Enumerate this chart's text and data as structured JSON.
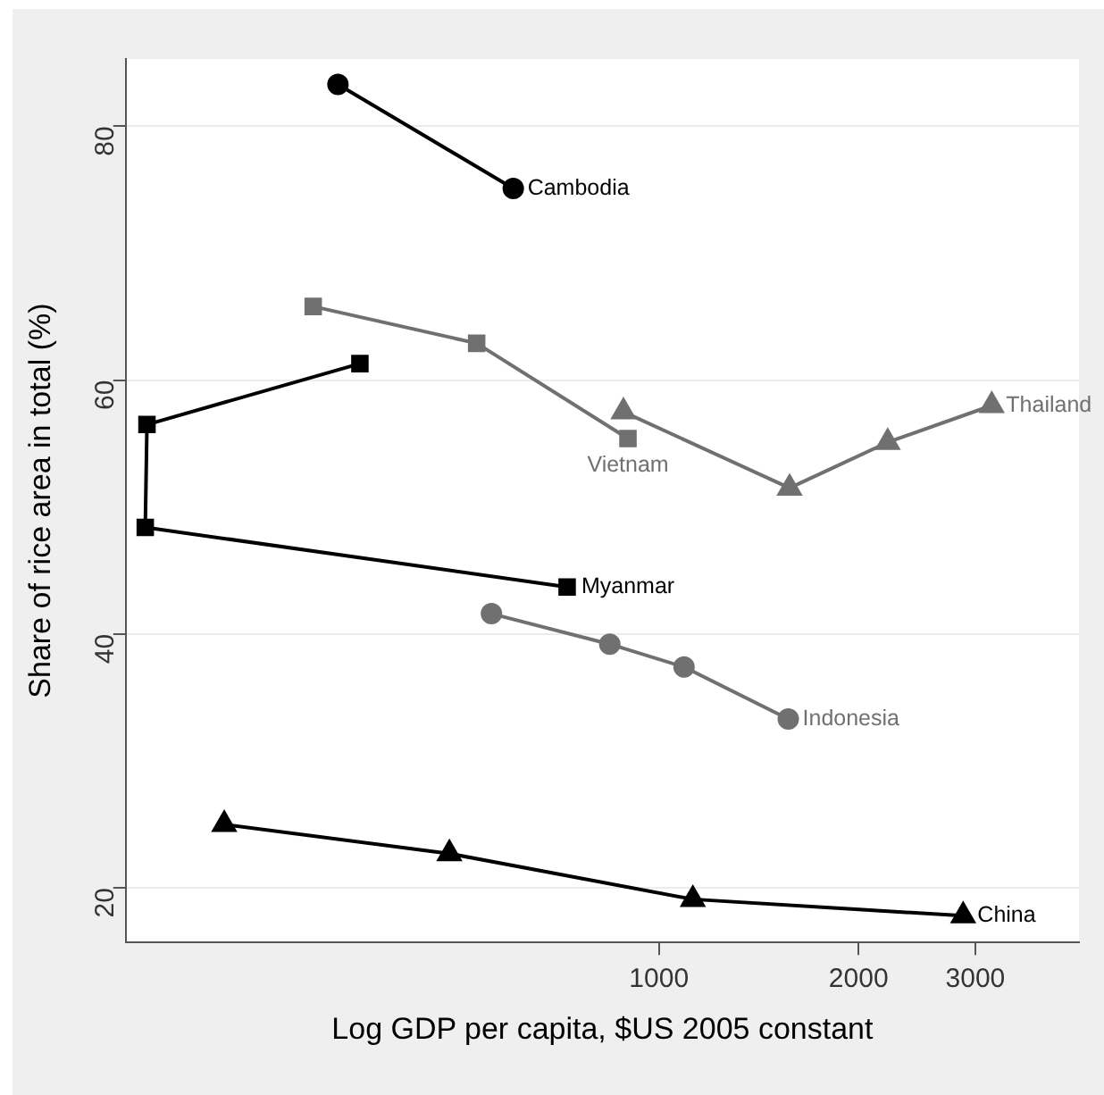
{
  "chart_data": {
    "type": "line",
    "xlabel": "Log GDP per capita, $US 2005 constant",
    "ylabel": "Share of rice area in total (%)",
    "log": "x",
    "xlim": [
      157,
      4300
    ],
    "xticks": [
      1000,
      2000,
      3000
    ],
    "ylim": [
      15.7,
      85.3
    ],
    "yticks": [
      20,
      40,
      60,
      80
    ],
    "grid": "y",
    "series": [
      {
        "name": "Cambodia",
        "color": "#000000",
        "marker": "circle",
        "x": [
          328,
          603
        ],
        "values": [
          83.3,
          75.1
        ]
      },
      {
        "name": "Vietnam",
        "color": "#707070",
        "marker": "square",
        "x": [
          301,
          531,
          898
        ],
        "values": [
          65.8,
          62.9,
          55.4
        ]
      },
      {
        "name": "Myanmar",
        "color": "#000000",
        "marker": "square",
        "x": [
          354,
          169,
          168,
          727
        ],
        "values": [
          61.3,
          56.5,
          48.4,
          43.7
        ]
      },
      {
        "name": "Thailand",
        "color": "#707070",
        "marker": "triangle",
        "x": [
          884,
          1574,
          2213,
          3176
        ],
        "values": [
          57.5,
          51.5,
          55.1,
          58.0
        ]
      },
      {
        "name": "Indonesia",
        "color": "#707070",
        "marker": "circle",
        "x": [
          559,
          843,
          1091,
          1567
        ],
        "values": [
          41.6,
          39.2,
          37.4,
          33.3
        ]
      },
      {
        "name": "China",
        "color": "#000000",
        "marker": "triangle",
        "x": [
          221,
          483,
          1125,
          2876
        ],
        "values": [
          25.0,
          22.7,
          19.1,
          17.8
        ]
      }
    ]
  }
}
